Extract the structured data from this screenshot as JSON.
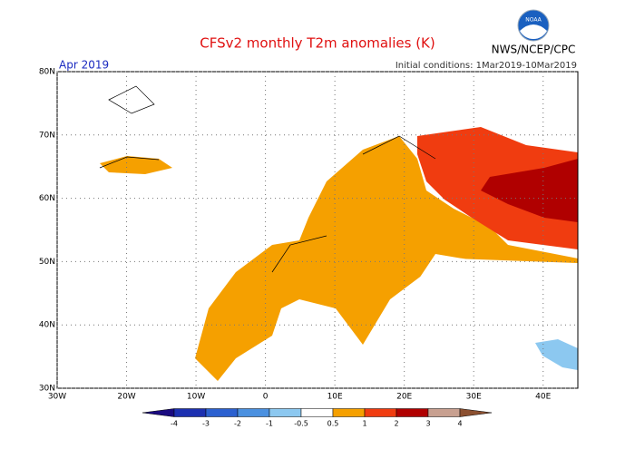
{
  "header": {
    "title": "CFSv2 monthly T2m anomalies (K)",
    "period": "Apr 2019",
    "initial_conditions": "Initial conditions: 1Mar2019-10Mar2019",
    "agency": "NWS/NCEP/CPC",
    "logo": "NOAA"
  },
  "map": {
    "lon_range": [
      -30,
      45
    ],
    "lat_range": [
      30,
      80
    ],
    "lat_ticks": [
      {
        "value": 80,
        "label": "80N"
      },
      {
        "value": 70,
        "label": "70N"
      },
      {
        "value": 60,
        "label": "60N"
      },
      {
        "value": 50,
        "label": "50N"
      },
      {
        "value": 40,
        "label": "40N"
      },
      {
        "value": 30,
        "label": "30N"
      }
    ],
    "lon_ticks": [
      {
        "value": -30,
        "label": "30W"
      },
      {
        "value": -20,
        "label": "20W"
      },
      {
        "value": -10,
        "label": "10W"
      },
      0,
      {
        "value": 10,
        "label": "10E"
      },
      {
        "value": 20,
        "label": "20E"
      },
      {
        "value": 30,
        "label": "30E"
      },
      {
        "value": 40,
        "label": "40E"
      }
    ]
  },
  "colorbar": {
    "ticks": [
      -4,
      -3,
      -2,
      -1,
      -0.5,
      0.5,
      1,
      2,
      3,
      4
    ],
    "colors": [
      "#1a0a80",
      "#1c2fb0",
      "#2b60d0",
      "#4a90e0",
      "#8cc8f0",
      "#ffffff",
      "#f5a000",
      "#f03c10",
      "#b00000",
      "#c8a090",
      "#8c5030"
    ]
  }
}
